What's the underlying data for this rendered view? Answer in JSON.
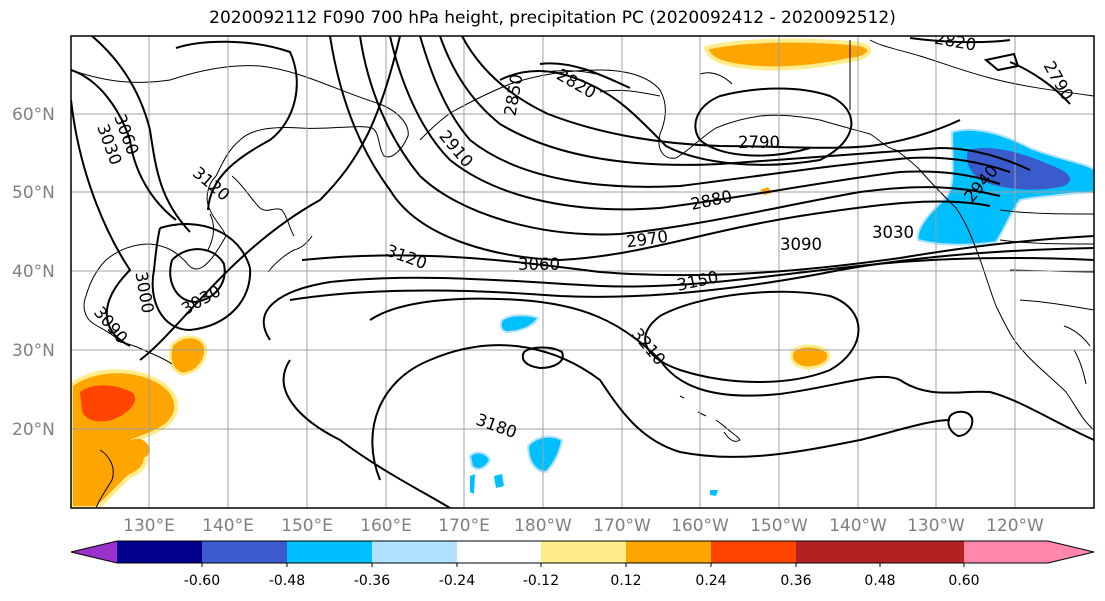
{
  "title": "2020092112 F090 700 hPa height, precipitation PC (2020092412 - 2020092512)",
  "lat_labels": [
    "60°N",
    "50°N",
    "40°N",
    "30°N",
    "20°N"
  ],
  "lon_labels": [
    "130°E",
    "140°E",
    "150°E",
    "160°E",
    "170°E",
    "180°W",
    "170°W",
    "160°W",
    "150°W",
    "140°W",
    "130°W",
    "120°W"
  ],
  "contour_labels": [
    "3060",
    "3030",
    "3120",
    "3090",
    "3000",
    "3030",
    "2910",
    "2850",
    "2820",
    "2790",
    "2820",
    "2790",
    "2880",
    "2970",
    "2940",
    "3030",
    "3090",
    "3150",
    "3060",
    "3120",
    "3210",
    "3180"
  ],
  "colorbar": {
    "ticks": [
      "-0.60",
      "-0.48",
      "-0.36",
      "-0.24",
      "-0.12",
      "0.12",
      "0.24",
      "0.36",
      "0.48",
      "0.60"
    ],
    "colors": [
      "#9932cc",
      "#00008b",
      "#3a5bcc",
      "#00bfff",
      "#b0e2ff",
      "#ffffff",
      "#ffec8b",
      "#ffa500",
      "#ff4500",
      "#b22222",
      "#ff88aa"
    ]
  }
}
